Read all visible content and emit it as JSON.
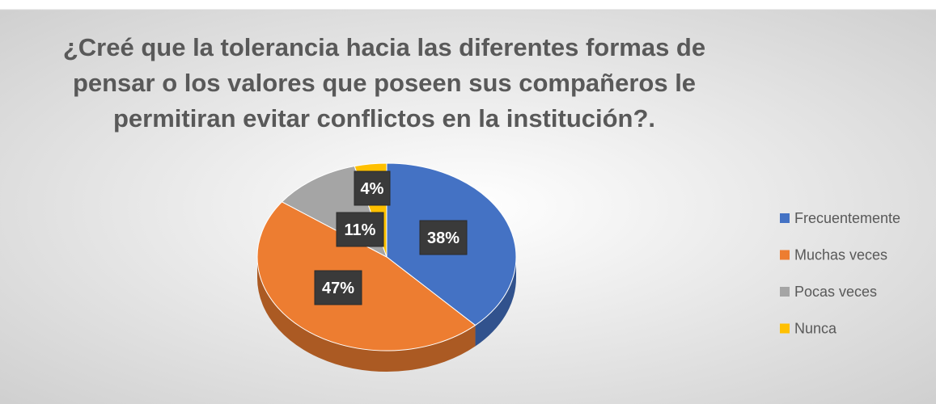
{
  "chart_data": {
    "type": "pie",
    "title": [
      "¿Creé que la tolerancia hacia las diferentes formas de",
      "pensar o los valores que poseen sus compañeros le",
      "permitiran evitar conflictos en la institución?."
    ],
    "categories": [
      "Frecuentemente",
      "Muchas veces",
      "Pocas veces",
      "Nunca"
    ],
    "values": [
      38,
      47,
      11,
      4
    ],
    "value_labels": [
      "38%",
      "47%",
      "11%",
      "4%"
    ],
    "colors": [
      "#4472c4",
      "#ed7d31",
      "#a5a5a5",
      "#ffc000"
    ],
    "legend": "right"
  }
}
